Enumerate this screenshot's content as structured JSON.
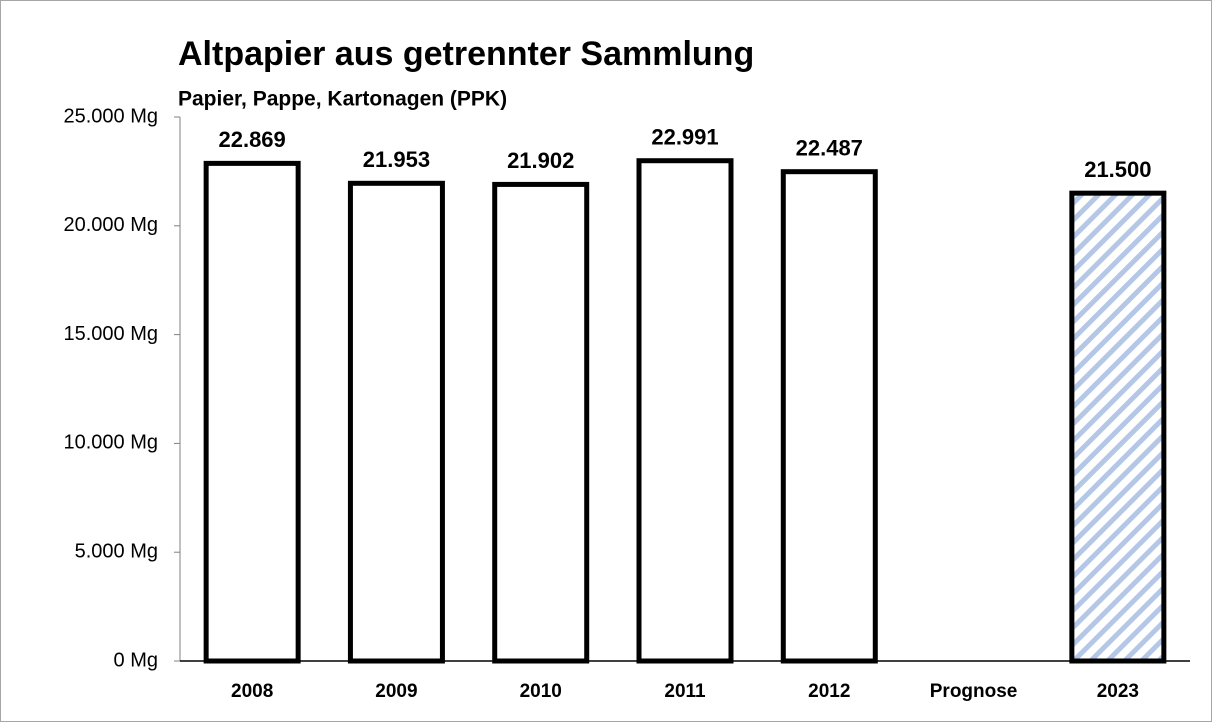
{
  "chart_data": {
    "type": "bar",
    "title": "Altpapier aus getrennter Sammlung",
    "subtitle": "Papier, Pappe, Kartonagen (PPK)",
    "categories": [
      "2008",
      "2009",
      "2010",
      "2011",
      "2012",
      "Prognose",
      "2023"
    ],
    "values": [
      22869,
      21953,
      21902,
      22991,
      22487,
      null,
      21500
    ],
    "value_labels": [
      "22.869",
      "21.953",
      "21.902",
      "22.991",
      "22.487",
      null,
      "21.500"
    ],
    "colors": [
      "#ffffff",
      "#ffffff",
      "#ffffff",
      "#ffffff",
      "#ffffff",
      null,
      "#b4c7e7"
    ],
    "hatched": [
      false,
      false,
      false,
      false,
      false,
      null,
      true
    ],
    "ylim": [
      0,
      25000
    ],
    "yticks": [
      {
        "value": 0,
        "label": "0 Mg"
      },
      {
        "value": 5000,
        "label": "5.000 Mg"
      },
      {
        "value": 10000,
        "label": "10.000 Mg"
      },
      {
        "value": 15000,
        "label": "15.000 Mg"
      },
      {
        "value": 20000,
        "label": "20.000 Mg"
      },
      {
        "value": 25000,
        "label": "25.000 Mg"
      }
    ],
    "grid": false
  }
}
